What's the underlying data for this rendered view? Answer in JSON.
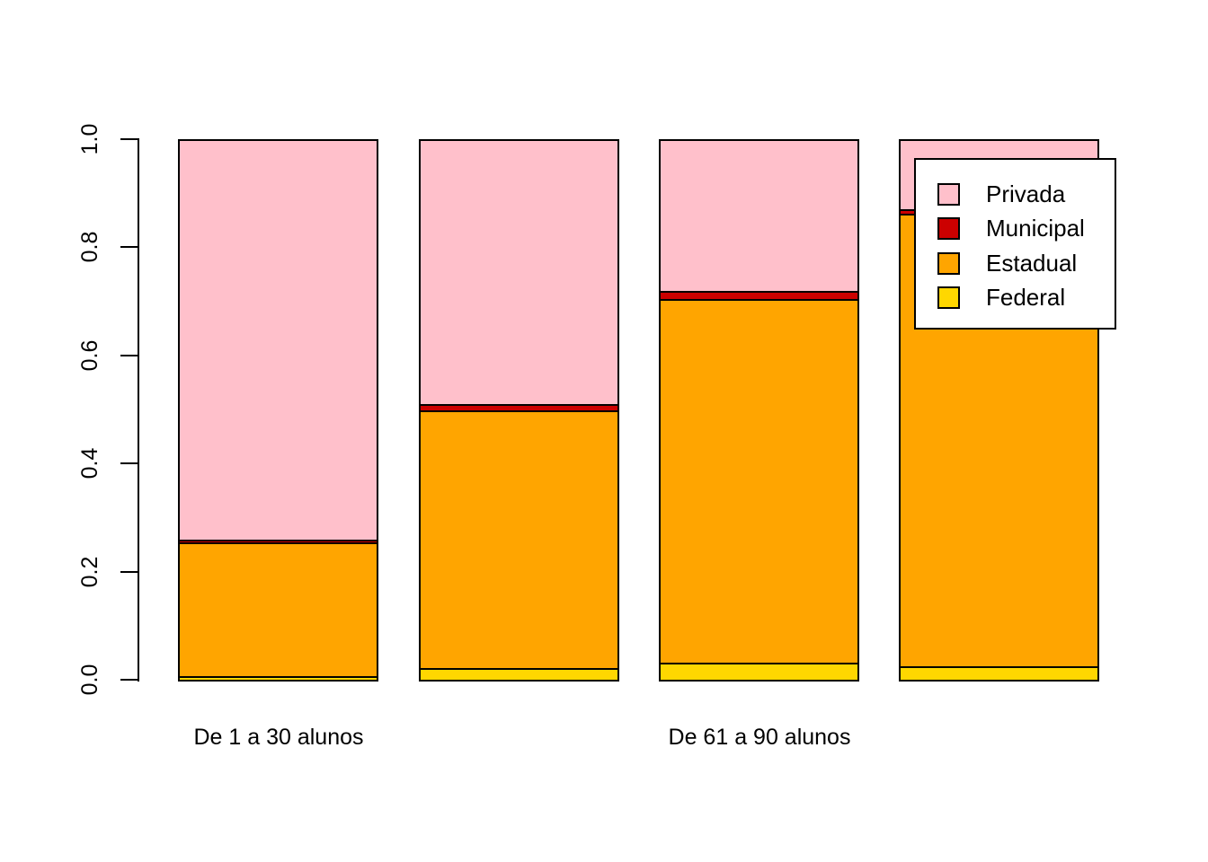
{
  "figure": {
    "background": "#FFFFFF"
  },
  "chart_data": {
    "type": "bar",
    "stacked": true,
    "orientation": "vertical",
    "title": "",
    "xlabel": "",
    "ylabel": "",
    "ylim": [
      0.0,
      1.0
    ],
    "yticks": [
      "0.0",
      "0.2",
      "0.4",
      "0.6",
      "0.8",
      "1.0"
    ],
    "grid": false,
    "categories": [
      "De 1 a 30 alunos",
      "",
      "De 61 a 90 alunos",
      ""
    ],
    "series": [
      {
        "name": "Federal",
        "color": "#FFD700",
        "values": [
          0.007,
          0.022,
          0.032,
          0.025
        ]
      },
      {
        "name": "Estadual",
        "color": "#FFA500",
        "values": [
          0.247,
          0.476,
          0.672,
          0.837
        ]
      },
      {
        "name": "Municipal",
        "color": "#CC0000",
        "values": [
          0.005,
          0.012,
          0.015,
          0.008
        ]
      },
      {
        "name": "Privada",
        "color": "#FFC0CB",
        "values": [
          0.741,
          0.49,
          0.281,
          0.13
        ]
      }
    ],
    "series_order_note": "bottom-to-top stacking",
    "legend": {
      "position": "top-right",
      "background": "#FFFFFF",
      "border_color": "#000000",
      "entries": [
        {
          "label": "Privada",
          "color": "#FFC0CB"
        },
        {
          "label": "Municipal",
          "color": "#CC0000"
        },
        {
          "label": "Estadual",
          "color": "#FFA500"
        },
        {
          "label": "Federal",
          "color": "#FFD700"
        }
      ]
    },
    "bar_border_color": "#000000",
    "axis_color": "#000000"
  }
}
